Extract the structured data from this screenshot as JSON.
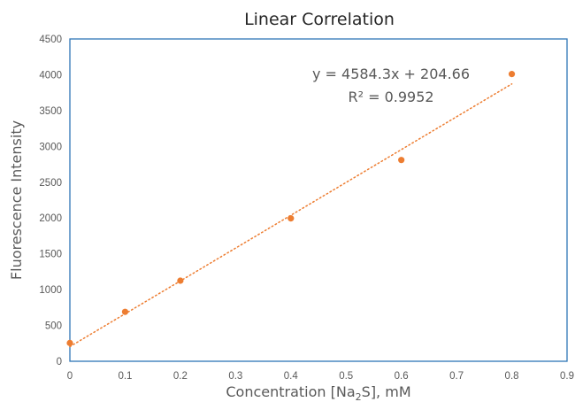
{
  "chart_data": {
    "type": "scatter",
    "title": "Linear Correlation",
    "xlabel": {
      "prefix": "Concentration [Na",
      "subscript": "2",
      "suffix": "S], mM"
    },
    "ylabel": "Fluorescence Intensity",
    "xlim": [
      0,
      0.9
    ],
    "ylim": [
      0,
      4500
    ],
    "x_ticks": [
      0,
      0.1,
      0.2,
      0.3,
      0.4,
      0.5,
      0.6,
      0.7,
      0.8,
      0.9
    ],
    "y_ticks": [
      0,
      500,
      1000,
      1500,
      2000,
      2500,
      3000,
      3500,
      4000,
      4500
    ],
    "grid": false,
    "series": [
      {
        "x": [
          0,
          0.1,
          0.2,
          0.4,
          0.6,
          0.8
        ],
        "y": [
          255,
          690,
          1125,
          1995,
          2810,
          4010
        ],
        "color": "#ED7D31"
      }
    ],
    "trendline": {
      "slope": 4584.3,
      "intercept": 204.66,
      "x_range": [
        0,
        0.8
      ],
      "style": "dotted",
      "color": "#ED7D31"
    },
    "annotations": {
      "equation": "y = 4584.3x + 204.66",
      "r_squared": "R² = 0.9952"
    },
    "colors": {
      "frame": "#2E75B6",
      "axis": "#BFBFBF",
      "text": "#595959",
      "title": "#262626"
    }
  }
}
